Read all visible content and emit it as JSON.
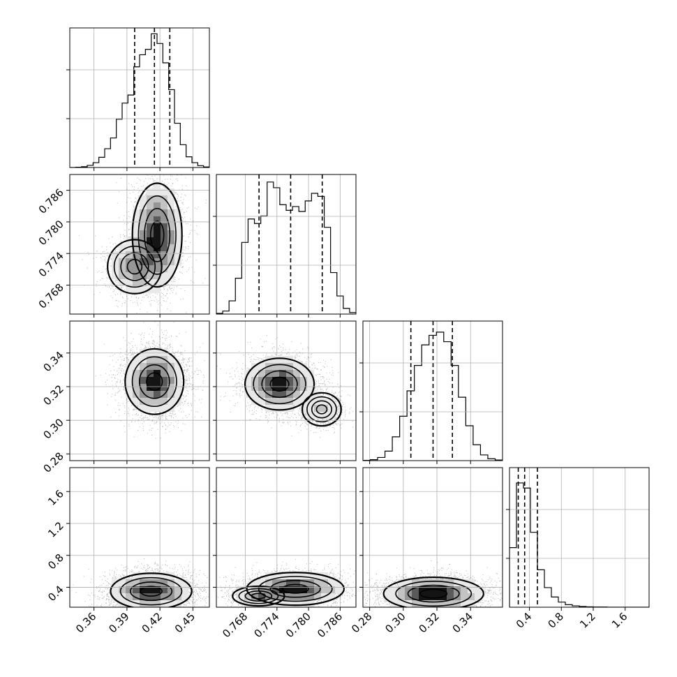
{
  "chart_data": {
    "type": "corner",
    "grid": true,
    "quantiles": [
      0.16,
      0.5,
      0.84
    ],
    "parameters": [
      {
        "range": [
          0.338,
          0.465
        ],
        "ticks": [
          0.36,
          0.39,
          0.42,
          0.45
        ],
        "tick_labels": [
          "0.36",
          "0.39",
          "0.42",
          "0.45"
        ],
        "quantile_values": [
          0.397,
          0.415,
          0.429
        ],
        "hist_counts": [
          0,
          1,
          3,
          8,
          18,
          38,
          70,
          110,
          180,
          240,
          270,
          375,
          420,
          440,
          498,
          462,
          390,
          290,
          165,
          85,
          40,
          18,
          7,
          2
        ],
        "hist_ylim": [
          0,
          520
        ]
      },
      {
        "range": [
          0.7625,
          0.789
        ],
        "ticks": [
          0.768,
          0.774,
          0.78,
          0.786
        ],
        "tick_labels": [
          "0.768",
          "0.774",
          "0.780",
          "0.786"
        ],
        "quantile_values": [
          0.7706,
          0.7766,
          0.7826
        ],
        "hist_counts": [
          2,
          8,
          35,
          95,
          190,
          252,
          240,
          260,
          350,
          335,
          290,
          275,
          285,
          272,
          300,
          320,
          312,
          230,
          110,
          48,
          15,
          4
        ],
        "hist_ylim": [
          0,
          370
        ]
      },
      {
        "range": [
          0.276,
          0.359
        ],
        "ticks": [
          0.28,
          0.3,
          0.32,
          0.34
        ],
        "tick_labels": [
          "0.28",
          "0.30",
          "0.32",
          "0.34"
        ],
        "quantile_values": [
          0.3045,
          0.3177,
          0.3292
        ],
        "hist_counts": [
          1,
          3,
          10,
          30,
          75,
          140,
          220,
          300,
          365,
          395,
          405,
          375,
          300,
          200,
          110,
          50,
          18,
          6,
          2
        ],
        "hist_ylim": [
          0,
          440
        ]
      },
      {
        "range": [
          0.15,
          1.9
        ],
        "ticks": [
          0.4,
          0.8,
          1.2,
          1.6
        ],
        "tick_labels": [
          "0.4",
          "0.8",
          "1.2",
          "1.6"
        ],
        "quantile_values": [
          0.26,
          0.34,
          0.5
        ],
        "hist_counts": [
          350,
          730,
          700,
          440,
          220,
          115,
          60,
          30,
          15,
          8,
          4,
          2,
          1,
          1,
          0,
          0,
          0,
          0,
          0,
          0
        ],
        "hist_ylim": [
          0,
          820
        ]
      }
    ],
    "joint_modes": {
      "1-0": [
        {
          "x": 0.4175,
          "y": 0.7775,
          "sx": 0.011,
          "sy": 0.0048,
          "w": 0.62
        },
        {
          "x": 0.397,
          "y": 0.7715,
          "sx": 0.012,
          "sy": 0.0025,
          "w": 0.38
        }
      ],
      "2-0": [
        {
          "x": 0.415,
          "y": 0.323,
          "sx": 0.013,
          "sy": 0.0095,
          "w": 1
        }
      ],
      "2-1": [
        {
          "x": 0.7745,
          "y": 0.3215,
          "sx": 0.0032,
          "sy": 0.0075,
          "w": 0.72
        },
        {
          "x": 0.7825,
          "y": 0.3065,
          "sx": 0.0018,
          "sy": 0.0048,
          "w": 0.28
        }
      ],
      "3-0": [
        {
          "x": 0.412,
          "y": 0.35,
          "sx": 0.018,
          "sy": 0.11,
          "w": 1
        }
      ],
      "3-1": [
        {
          "x": 0.7705,
          "y": 0.29,
          "sx": 0.0024,
          "sy": 0.06,
          "w": 0.35
        },
        {
          "x": 0.7775,
          "y": 0.38,
          "sx": 0.0045,
          "sy": 0.1,
          "w": 0.65
        }
      ],
      "3-2": [
        {
          "x": 0.318,
          "y": 0.32,
          "sx": 0.0145,
          "sy": 0.1,
          "w": 1
        }
      ]
    }
  }
}
